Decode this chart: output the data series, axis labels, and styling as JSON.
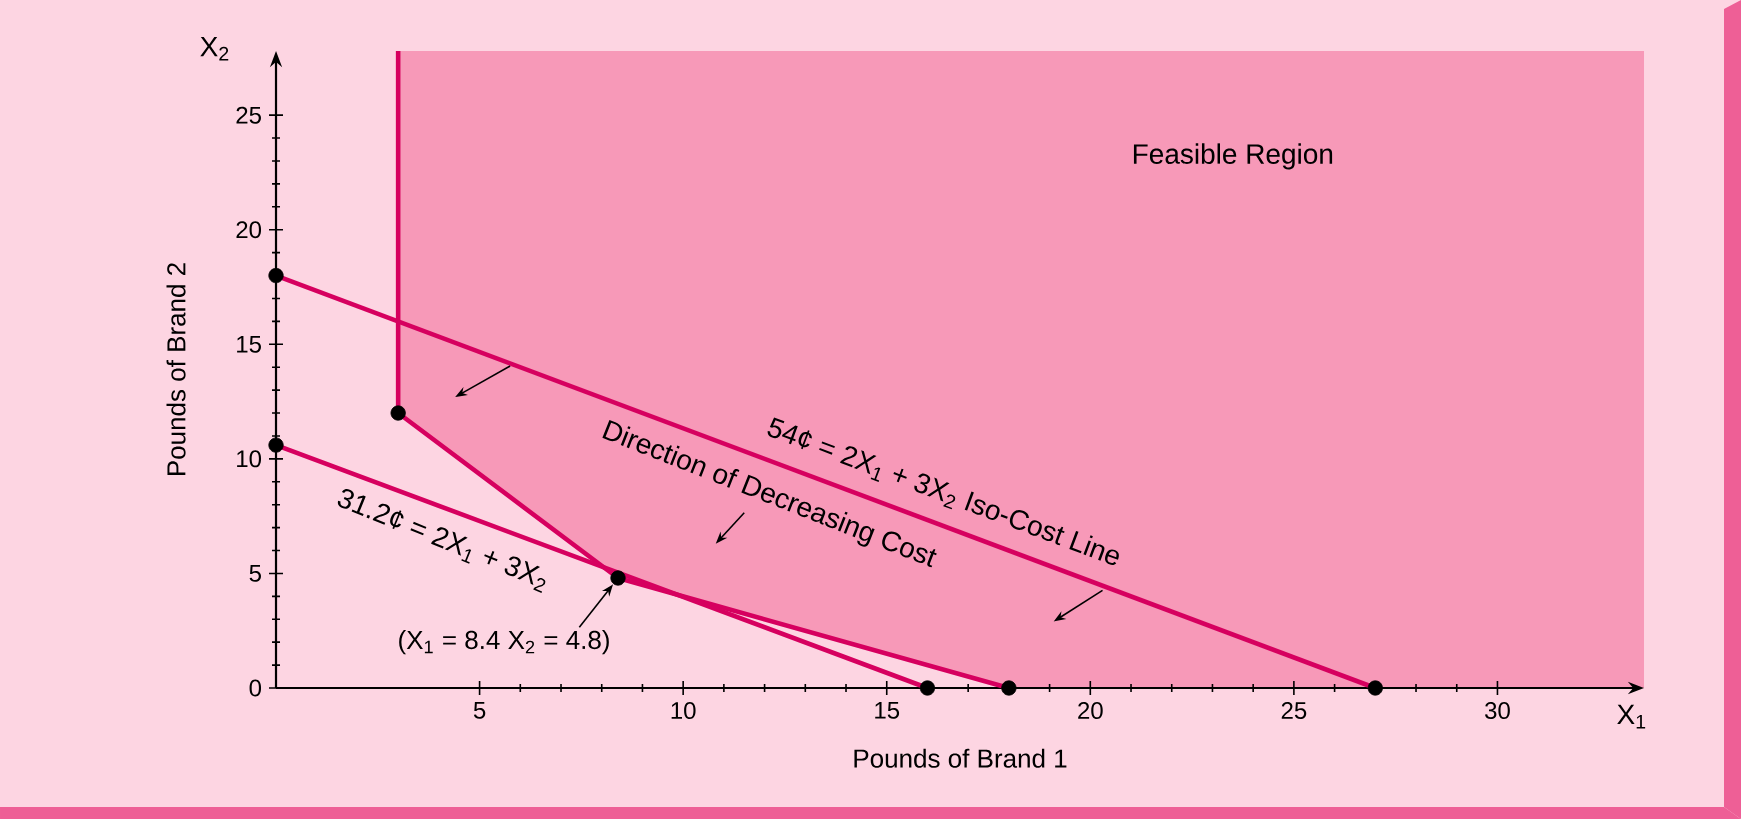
{
  "chart_data": {
    "type": "line",
    "xlabel": "Pounds of Brand 1",
    "ylabel": "Pounds of Brand 2",
    "xlim": [
      0,
      33.6
    ],
    "ylim": [
      0,
      27.8
    ],
    "xticks": [
      5,
      10,
      15,
      20,
      25,
      30
    ],
    "yticks": [
      0,
      5,
      10,
      15,
      20,
      25
    ],
    "grid": false,
    "series": [
      {
        "color": "#d6005f",
        "x": [
          3,
          3,
          8.4,
          18
        ],
        "values": [
          27.8,
          12,
          4.8,
          0
        ]
      },
      {
        "color": "#d6005f",
        "x": [
          0,
          27
        ],
        "values": [
          18,
          0
        ]
      },
      {
        "color": "#d6005f",
        "x": [
          0,
          16
        ],
        "values": [
          10.6,
          0
        ]
      },
      {
        "type": "scatter",
        "marker": "circle",
        "color": "#000000",
        "x": [
          0,
          3,
          0,
          8.4,
          16,
          18,
          27
        ],
        "values": [
          18,
          12,
          10.6,
          4.8,
          0,
          0,
          0
        ]
      }
    ],
    "annotations": [
      "Feasible Region",
      "54¢ = 2X$_{1}$  +  3X$_{2}$ Iso-Cost Line",
      "Direction of Decreasing Cost",
      "31.2¢ = 2X$_{1}$ + 3X$_{2}$",
      {
        "text": "(X$_{1}$ = 8.4 X$_{2}$ = 4.8)",
        "x": 8.4,
        "y": 4.8
      },
      "X$_{1}$",
      "X$_{2}$"
    ]
  }
}
